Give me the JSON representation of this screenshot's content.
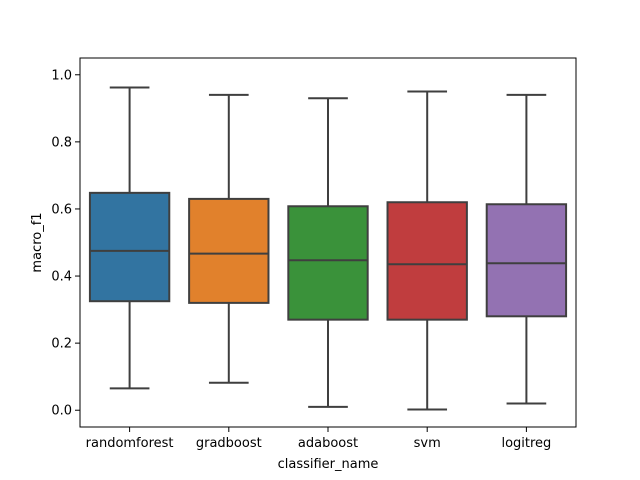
{
  "chart_data": {
    "type": "box",
    "xlabel": "classifier_name",
    "ylabel": "macro_f1",
    "ylim": [
      -0.05,
      1.05
    ],
    "yticks": [
      "0.0",
      "0.2",
      "0.4",
      "0.6",
      "0.8",
      "1.0"
    ],
    "ytick_values": [
      0.0,
      0.2,
      0.4,
      0.6,
      0.8,
      1.0
    ],
    "categories": [
      "randomforest",
      "gradboost",
      "adaboost",
      "svm",
      "logitreg"
    ],
    "boxes": [
      {
        "name": "randomforest",
        "whisker_low": 0.065,
        "q1": 0.325,
        "median": 0.475,
        "q3": 0.648,
        "whisker_high": 0.962,
        "color": "#3274a1"
      },
      {
        "name": "gradboost",
        "whisker_low": 0.082,
        "q1": 0.32,
        "median": 0.467,
        "q3": 0.63,
        "whisker_high": 0.94,
        "color": "#e1812c"
      },
      {
        "name": "adaboost",
        "whisker_low": 0.01,
        "q1": 0.27,
        "median": 0.447,
        "q3": 0.608,
        "whisker_high": 0.93,
        "color": "#3a923a"
      },
      {
        "name": "svm",
        "whisker_low": 0.002,
        "q1": 0.27,
        "median": 0.435,
        "q3": 0.62,
        "whisker_high": 0.95,
        "color": "#c03d3e"
      },
      {
        "name": "logitreg",
        "whisker_low": 0.02,
        "q1": 0.28,
        "median": 0.438,
        "q3": 0.614,
        "whisker_high": 0.94,
        "color": "#9372b2"
      }
    ]
  }
}
